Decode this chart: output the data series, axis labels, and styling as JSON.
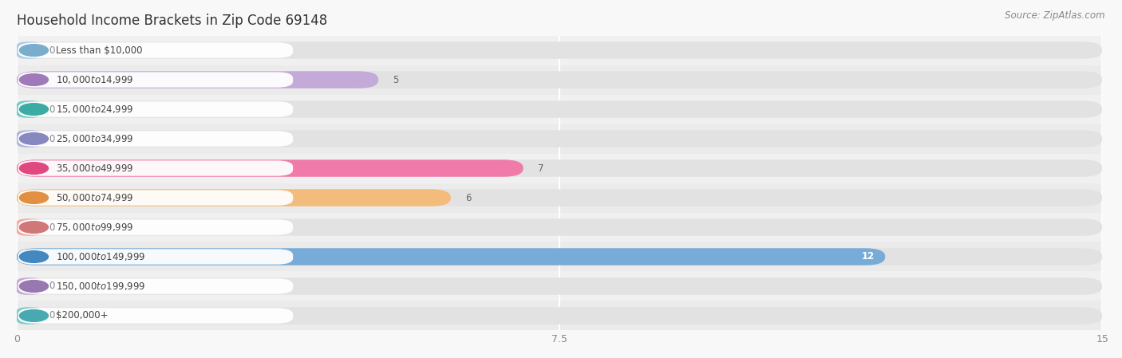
{
  "title": "Household Income Brackets in Zip Code 69148",
  "source": "Source: ZipAtlas.com",
  "categories": [
    "Less than $10,000",
    "$10,000 to $14,999",
    "$15,000 to $24,999",
    "$25,000 to $34,999",
    "$35,000 to $49,999",
    "$50,000 to $74,999",
    "$75,000 to $99,999",
    "$100,000 to $149,999",
    "$150,000 to $199,999",
    "$200,000+"
  ],
  "values": [
    0,
    5,
    0,
    0,
    7,
    6,
    0,
    12,
    0,
    0
  ],
  "bar_colors": [
    "#aacce8",
    "#c4aad8",
    "#6dccc4",
    "#b4b4e0",
    "#f07aaa",
    "#f4bc7c",
    "#f4a8a0",
    "#78acd8",
    "#c4aad4",
    "#7eccc8"
  ],
  "dot_colors": [
    "#7aaccc",
    "#a07ab8",
    "#3aaca4",
    "#8888c0",
    "#e04880",
    "#e09040",
    "#d07878",
    "#4488c0",
    "#9878b0",
    "#48aab0"
  ],
  "row_bg_colors": [
    "#f0f0f0",
    "#ebebeb"
  ],
  "bar_track_color": "#e2e2e2",
  "xlim": [
    0,
    15
  ],
  "xticks": [
    0,
    7.5,
    15
  ],
  "title_fontsize": 12,
  "source_fontsize": 8.5,
  "tick_fontsize": 9,
  "label_fontsize": 8.5,
  "value_fontsize": 8.5
}
